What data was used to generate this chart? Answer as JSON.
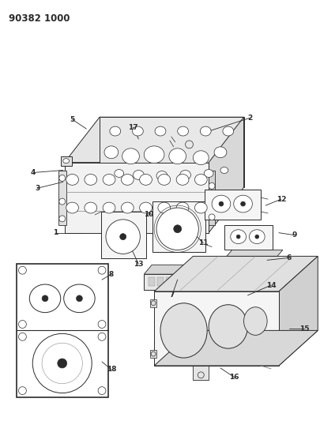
{
  "title": "90382 1000",
  "background_color": "#ffffff",
  "text_color": "#000000",
  "figsize": [
    4.06,
    5.33
  ],
  "dpi": 100,
  "line_color": "#2a2a2a",
  "light_gray": "#c8c8c8",
  "mid_gray": "#888888"
}
